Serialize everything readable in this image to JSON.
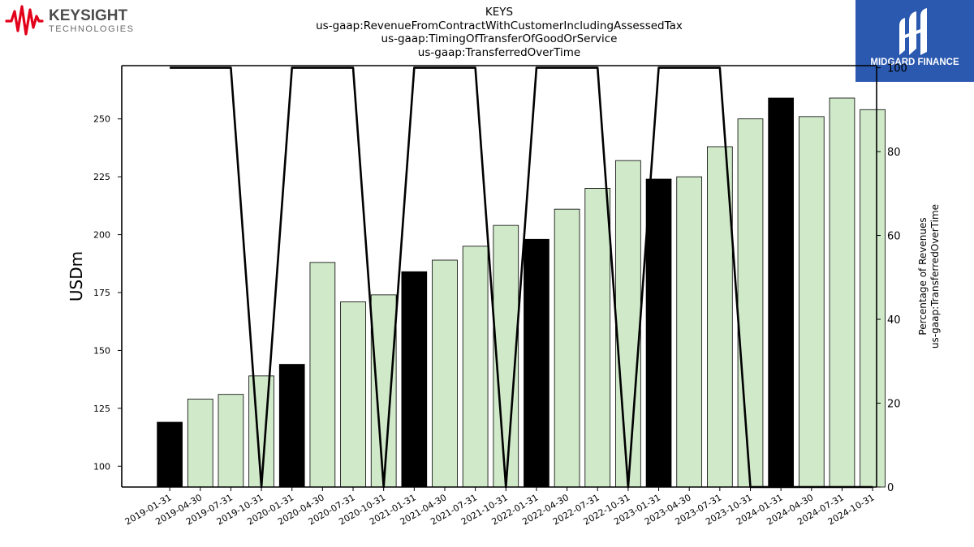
{
  "branding": {
    "company_name": "KEYSIGHT",
    "company_tagline": "TECHNOLOGIES",
    "publisher_name": "MIDGARD FINANCE",
    "brand_red": "#e2001a",
    "publisher_blue": "#2b59b0"
  },
  "chart_data": {
    "type": "bar",
    "title_lines": [
      "KEYS",
      "us-gaap:RevenueFromContractWithCustomerIncludingAssessedTax",
      "us-gaap:TimingOfTransferOfGoodOrService",
      "us-gaap:TransferredOverTime"
    ],
    "ylabel": "USDm",
    "y2label_lines": [
      "Percentage of Revenues",
      "us-gaap:TransferredOverTime"
    ],
    "categories": [
      "2019-01-31",
      "2019-04-30",
      "2019-07-31",
      "2019-10-31",
      "2020-01-31",
      "2020-04-30",
      "2020-07-31",
      "2020-10-31",
      "2021-01-31",
      "2021-04-30",
      "2021-07-31",
      "2021-10-31",
      "2022-01-31",
      "2022-04-30",
      "2022-07-31",
      "2022-10-31",
      "2023-01-31",
      "2023-04-30",
      "2023-07-31",
      "2023-10-31",
      "2024-01-31",
      "2024-04-30",
      "2024-07-31",
      "2024-10-31"
    ],
    "values": [
      119,
      129,
      131,
      139,
      144,
      188,
      171,
      174,
      184,
      189,
      195,
      204,
      198,
      211,
      220,
      232,
      224,
      225,
      238,
      250,
      259,
      251,
      259,
      254
    ],
    "highlighted": [
      true,
      false,
      false,
      false,
      true,
      false,
      false,
      false,
      true,
      false,
      false,
      false,
      true,
      false,
      false,
      false,
      true,
      false,
      false,
      false,
      true,
      false,
      false,
      false
    ],
    "percent_line": [
      100,
      100,
      100,
      0,
      100,
      100,
      100,
      0,
      100,
      100,
      100,
      0,
      100,
      100,
      100,
      0,
      100,
      100,
      100,
      0,
      0,
      0,
      0,
      0
    ],
    "ylim": [
      91,
      273
    ],
    "yticks": [
      100,
      125,
      150,
      175,
      200,
      225,
      250
    ],
    "y2lim": [
      0,
      100.5
    ],
    "y2ticks": [
      0,
      20,
      40,
      60,
      80,
      100
    ],
    "colors": {
      "bar": "#cfe9c9",
      "bar_highlight": "#000000",
      "line": "#000000"
    }
  }
}
